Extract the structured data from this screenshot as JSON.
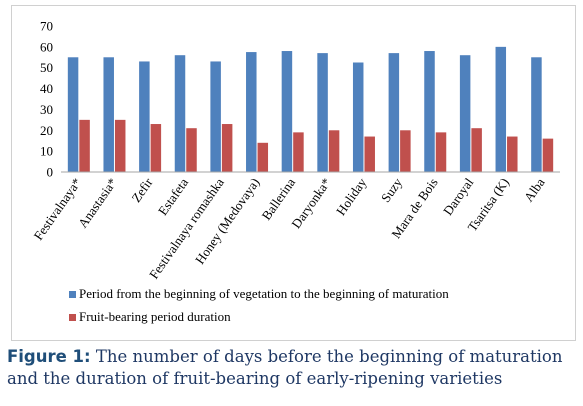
{
  "chart_data": {
    "type": "bar",
    "categories": [
      "Festivalnaya*",
      "Anastasia*",
      "Zefir",
      "Estafeta",
      "Festivalnaya romashka",
      "Honey (Medovaya)",
      "Ballerina",
      "Daryonka*",
      "Holiday",
      "Suzy",
      "Mara de Bois",
      "Daroyal",
      "Tsaritsa (K)",
      "Alba"
    ],
    "series": [
      {
        "name": "Period from the beginning of vegetation to the beginning of maturation",
        "color": "#4f81bd",
        "values": [
          55,
          55,
          53,
          56,
          53,
          57.5,
          58,
          57,
          52.5,
          57,
          58,
          56,
          60,
          55
        ]
      },
      {
        "name": "Fruit-bearing period duration",
        "color": "#c0504d",
        "values": [
          25,
          25,
          23,
          21,
          23,
          14,
          19,
          20,
          17,
          20,
          19,
          21,
          17,
          16
        ]
      }
    ],
    "ylim": [
      0,
      70
    ],
    "yticks": [
      0,
      10,
      20,
      30,
      40,
      50,
      60,
      70
    ],
    "grid": false,
    "legend_position": "bottom"
  },
  "caption": {
    "label": "Figure 1:",
    "text": " The number of days before the beginning of maturation and the duration of fruit-bearing of early-ripening varieties"
  }
}
